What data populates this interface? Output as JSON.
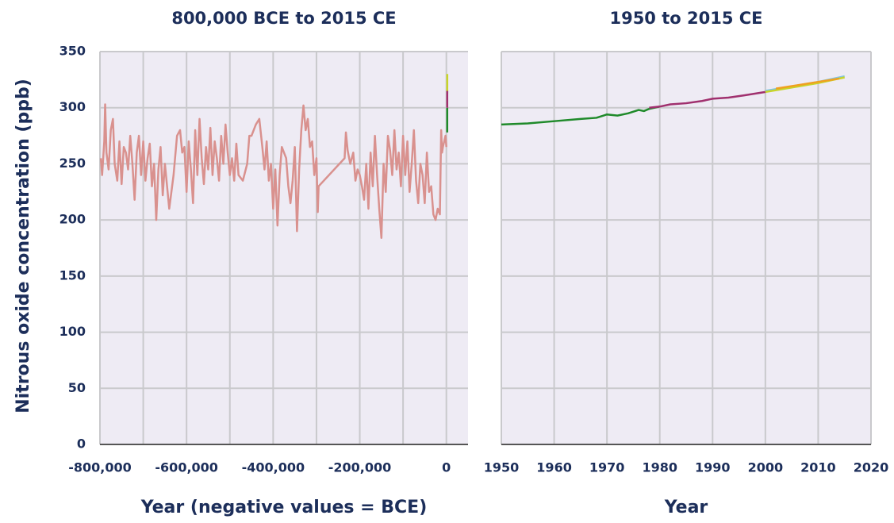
{
  "chart_data": [
    {
      "type": "line",
      "title": "800,000 BCE to 2015 CE",
      "ylabel": "Nitrous oxide concentration (ppb)",
      "xlabel": "Year (negative values = BCE)",
      "xlim": [
        -800000,
        50000
      ],
      "ylim": [
        0,
        350
      ],
      "xticks": [
        {
          "value": -800000,
          "label": "-800,000"
        },
        {
          "value": -600000,
          "label": "-600,000"
        },
        {
          "value": -400000,
          "label": "-400,000"
        },
        {
          "value": -200000,
          "label": "-200,000"
        },
        0
      ],
      "xminor": [
        -700000,
        -500000,
        -300000,
        -100000
      ],
      "yticks": [
        0,
        50,
        100,
        150,
        200,
        250,
        300,
        350
      ],
      "grid": true,
      "series": [
        {
          "color": "#d9918e",
          "x": [
            -798000,
            -795000,
            -790000,
            -788000,
            -785000,
            -780000,
            -775000,
            -770000,
            -766000,
            -760000,
            -755000,
            -750000,
            -745000,
            -740000,
            -735000,
            -730000,
            -725000,
            -720000,
            -715000,
            -710000,
            -705000,
            -700000,
            -695000,
            -690000,
            -685000,
            -680000,
            -675000,
            -670000,
            -665000,
            -660000,
            -655000,
            -650000,
            -645000,
            -640000,
            -630000,
            -622000,
            -615000,
            -610000,
            -605000,
            -600000,
            -595000,
            -590000,
            -585000,
            -580000,
            -575000,
            -570000,
            -565000,
            -560000,
            -555000,
            -550000,
            -545000,
            -540000,
            -535000,
            -530000,
            -525000,
            -520000,
            -515000,
            -510000,
            -505000,
            -500000,
            -495000,
            -490000,
            -485000,
            -480000,
            -470000,
            -460000,
            -455000,
            -450000,
            -440000,
            -432000,
            -425000,
            -420000,
            -415000,
            -410000,
            -405000,
            -400000,
            -395000,
            -390000,
            -385000,
            -380000,
            -375000,
            -370000,
            -365000,
            -360000,
            -355000,
            -350000,
            -345000,
            -340000,
            -335000,
            -330000,
            -325000,
            -320000,
            -315000,
            -310000,
            -305000,
            -300000,
            -297000,
            -295000,
            -235000,
            -232000,
            -228000,
            -222000,
            -215000,
            -210000,
            -205000,
            -200000,
            -195000,
            -190000,
            -185000,
            -180000,
            -175000,
            -170000,
            -165000,
            -160000,
            -155000,
            -150000,
            -145000,
            -140000,
            -135000,
            -130000,
            -125000,
            -120000,
            -115000,
            -110000,
            -105000,
            -100000,
            -95000,
            -90000,
            -85000,
            -80000,
            -75000,
            -70000,
            -65000,
            -60000,
            -55000,
            -50000,
            -45000,
            -40000,
            -35000,
            -30000,
            -25000,
            -20000,
            -15000,
            -12000,
            -10000,
            -8000,
            -5000,
            -2000,
            0
          ],
          "values": [
            255,
            240,
            270,
            303,
            260,
            245,
            280,
            290,
            250,
            235,
            270,
            232,
            265,
            260,
            245,
            275,
            250,
            218,
            260,
            275,
            240,
            270,
            235,
            255,
            268,
            230,
            250,
            200,
            245,
            265,
            222,
            250,
            230,
            210,
            240,
            275,
            280,
            260,
            265,
            225,
            270,
            245,
            215,
            280,
            240,
            290,
            255,
            232,
            265,
            245,
            282,
            240,
            270,
            255,
            235,
            275,
            250,
            285,
            260,
            240,
            255,
            235,
            268,
            240,
            235,
            250,
            275,
            275,
            285,
            290,
            265,
            245,
            270,
            235,
            250,
            210,
            245,
            195,
            240,
            265,
            260,
            255,
            230,
            215,
            235,
            265,
            190,
            245,
            280,
            302,
            280,
            290,
            265,
            270,
            240,
            255,
            207,
            230,
            255,
            278,
            262,
            250,
            260,
            235,
            245,
            240,
            230,
            218,
            250,
            210,
            260,
            230,
            275,
            240,
            210,
            184,
            250,
            225,
            275,
            262,
            240,
            280,
            245,
            260,
            230,
            275,
            240,
            270,
            225,
            250,
            280,
            235,
            215,
            250,
            240,
            215,
            260,
            225,
            230,
            205,
            200,
            210,
            205,
            280,
            260,
            265,
            270,
            275,
            265
          ]
        },
        {
          "color": "#1f8a2a",
          "x": [
            1950,
            1980
          ],
          "values": [
            278,
            300
          ]
        },
        {
          "color": "#a0306e",
          "x": [
            1980,
            2000
          ],
          "values": [
            300,
            315
          ]
        },
        {
          "color": "#c8d42a",
          "x": [
            2000,
            2015
          ],
          "values": [
            315,
            330
          ]
        }
      ]
    },
    {
      "type": "line",
      "title": "1950 to 2015 CE",
      "xlabel": "Year",
      "xlim": [
        1950,
        2020
      ],
      "ylim": [
        0,
        350
      ],
      "xticks": [
        1950,
        1960,
        1970,
        1980,
        1990,
        2000,
        2010,
        2020
      ],
      "yticks": [
        0,
        50,
        100,
        150,
        200,
        250,
        300,
        350
      ],
      "show_ytick_labels": false,
      "grid": true,
      "series": [
        {
          "color": "#1f8a2a",
          "x": [
            1950,
            1955,
            1960,
            1965,
            1968,
            1970,
            1972,
            1974,
            1976,
            1977,
            1978,
            1980
          ],
          "values": [
            285,
            286,
            288,
            290,
            291,
            294,
            293,
            295,
            298,
            297,
            299,
            301
          ]
        },
        {
          "color": "#a0306e",
          "x": [
            1978,
            1980,
            1982,
            1985,
            1988,
            1990,
            1993,
            1996,
            2000
          ],
          "values": [
            300,
            301,
            303,
            304,
            306,
            308,
            309,
            311,
            314
          ]
        },
        {
          "color": "#7fc4e8",
          "x": [
            2000,
            2005,
            2010,
            2015
          ],
          "values": [
            315,
            319,
            323,
            328
          ]
        },
        {
          "color": "#c8d42a",
          "x": [
            2000,
            2005,
            2010,
            2015
          ],
          "values": [
            314,
            318,
            322,
            327
          ]
        },
        {
          "color": "#f0a020",
          "x": [
            2002,
            2006,
            2010,
            2014
          ],
          "values": [
            317,
            320,
            323,
            326
          ]
        }
      ]
    }
  ]
}
